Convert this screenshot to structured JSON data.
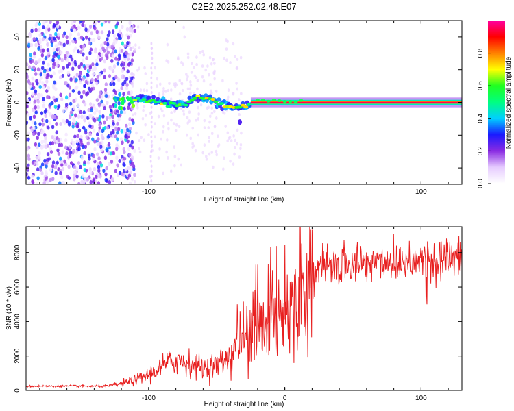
{
  "title": "C2E2.2025.252.02.48.E07",
  "chart_data": [
    {
      "type": "heatmap",
      "xlabel": "Height of straight line (km)",
      "ylabel": "Frequency (Hz)",
      "xlim": [
        -190,
        130
      ],
      "ylim": [
        -50,
        50
      ],
      "x_ticks": [
        -100,
        0,
        100
      ],
      "x_tick_labels": [
        "-100",
        "",
        "100"
      ],
      "y_ticks": [
        -40,
        -20,
        0,
        20,
        40
      ],
      "y_tick_labels": [
        "-40",
        "-20",
        "0",
        "20",
        "40"
      ],
      "colorbar": {
        "label": "Normalized spectral amplitude",
        "range": [
          0,
          1
        ],
        "ticks": [
          0.0,
          0.2,
          0.4,
          0.6,
          0.8
        ],
        "tick_labels": [
          "0.0",
          "0.2",
          "0.4",
          "0.6",
          "0.8"
        ],
        "colors": [
          "#ffffff",
          "#e6ccff",
          "#8a2be2",
          "#1a1aff",
          "#00d0ff",
          "#00ff80",
          "#20ff20",
          "#ffff00",
          "#ff8000",
          "#ff0000",
          "#ff00a0"
        ]
      },
      "features": [
        {
          "name": "broadband noise",
          "x_range": [
            -190,
            -110
          ],
          "freq_range": [
            -50,
            50
          ],
          "level": 0.15
        },
        {
          "name": "onset cluster",
          "x_range": [
            -125,
            -110
          ],
          "freq_center": 1,
          "level": 0.6
        },
        {
          "name": "wandering tone",
          "x_range": [
            -110,
            -25
          ],
          "freq_points": [
            [
              -110,
              2
            ],
            [
              -95,
              1
            ],
            [
              -85,
              -1
            ],
            [
              -75,
              -2
            ],
            [
              -65,
              3
            ],
            [
              -55,
              2
            ],
            [
              -45,
              -2
            ],
            [
              -35,
              -3
            ],
            [
              -25,
              -1
            ]
          ],
          "level": 0.5
        },
        {
          "name": "stable carrier",
          "x_range": [
            -25,
            130
          ],
          "freq_center": 0,
          "level": 0.95
        }
      ],
      "grid": false
    },
    {
      "type": "line",
      "xlabel": "Height of straight line (km)",
      "ylabel": "SNR (10 * v/v)",
      "xlim": [
        -190,
        130
      ],
      "ylim": [
        0,
        9500
      ],
      "x_ticks": [
        -100,
        0,
        100
      ],
      "x_tick_labels": [
        "-100",
        "0",
        "100"
      ],
      "y_ticks": [
        0,
        2000,
        4000,
        6000,
        8000
      ],
      "y_tick_labels": [
        "0",
        "2000",
        "4000",
        "6000",
        "8000"
      ],
      "color": "#e82020",
      "x": [
        -190,
        -160,
        -130,
        -120,
        -110,
        -100,
        -90,
        -80,
        -70,
        -60,
        -50,
        -40,
        -35,
        -30,
        -25,
        -20,
        -15,
        -10,
        -5,
        0,
        5,
        10,
        15,
        20,
        30,
        40,
        50,
        60,
        70,
        80,
        90,
        100,
        105,
        110,
        120,
        130
      ],
      "values": [
        250,
        250,
        250,
        400,
        600,
        900,
        1400,
        1800,
        1600,
        1300,
        1500,
        2000,
        2800,
        3000,
        3500,
        4100,
        4300,
        4500,
        4600,
        4800,
        5300,
        5800,
        6100,
        6800,
        7100,
        7300,
        7300,
        7400,
        7500,
        7500,
        7550,
        7600,
        7700,
        7650,
        7650,
        7600
      ],
      "grid": false
    }
  ]
}
